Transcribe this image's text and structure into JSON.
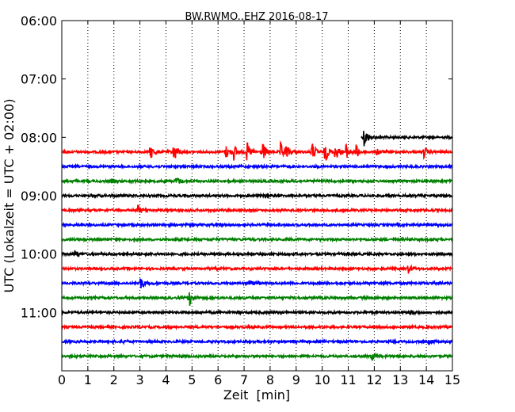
{
  "chart_data": {
    "type": "line",
    "title": "BW.RWMO..EHZ 2016-08-17",
    "xlabel": "Zeit  [min]",
    "ylabel": "UTC (Lokalzeit = UTC + 02:00)",
    "xlim": [
      0,
      15
    ],
    "ylim_minutes": [
      360,
      720
    ],
    "x_ticks": [
      "0",
      "1",
      "2",
      "3",
      "4",
      "5",
      "6",
      "7",
      "8",
      "9",
      "10",
      "11",
      "12",
      "13",
      "14",
      "15"
    ],
    "y_ticks": [
      {
        "label": "06:00",
        "minutes": 360
      },
      {
        "label": "07:00",
        "minutes": 420
      },
      {
        "label": "08:00",
        "minutes": 480
      },
      {
        "label": "09:00",
        "minutes": 540
      },
      {
        "label": "10:00",
        "minutes": 600
      },
      {
        "label": "11:00",
        "minutes": 660
      }
    ],
    "grid": "vertical dotted",
    "colors": {
      "red": "#ff0000",
      "blue": "#0000ff",
      "green": "#008000",
      "black": "#000000"
    },
    "traces": [
      {
        "start": "08:00",
        "color": "black",
        "x_start": 11.5,
        "events": [
          {
            "x": 11.6,
            "amp": 1.0
          }
        ]
      },
      {
        "start": "08:15",
        "color": "red",
        "x_start": 0,
        "events": [
          {
            "x": 3.4,
            "amp": 0.7
          },
          {
            "x": 4.3,
            "amp": 1.0
          },
          {
            "x": 6.3,
            "amp": 0.6
          },
          {
            "x": 6.6,
            "amp": 0.7
          },
          {
            "x": 7.1,
            "amp": 0.9
          },
          {
            "x": 7.7,
            "amp": 0.9
          },
          {
            "x": 8.4,
            "amp": 0.8
          },
          {
            "x": 8.6,
            "amp": 0.5
          },
          {
            "x": 9.6,
            "amp": 0.9
          },
          {
            "x": 10.1,
            "amp": 1.0
          },
          {
            "x": 10.5,
            "amp": 0.8
          },
          {
            "x": 10.9,
            "amp": 0.7
          },
          {
            "x": 11.3,
            "amp": 0.6
          },
          {
            "x": 12.1,
            "amp": 0.3
          },
          {
            "x": 13.9,
            "amp": 0.5
          }
        ]
      },
      {
        "start": "08:30",
        "color": "blue",
        "x_start": 0,
        "events": []
      },
      {
        "start": "08:45",
        "color": "green",
        "x_start": 0,
        "events": [
          {
            "x": 4.4,
            "amp": 0.4
          },
          {
            "x": 1.9,
            "amp": 0.15
          }
        ]
      },
      {
        "start": "09:00",
        "color": "black",
        "x_start": 0,
        "events": [
          {
            "x": 7.9,
            "amp": 0.2
          }
        ]
      },
      {
        "start": "09:15",
        "color": "red",
        "x_start": 0,
        "events": [
          {
            "x": 2.9,
            "amp": 0.5
          }
        ]
      },
      {
        "start": "09:30",
        "color": "blue",
        "x_start": 0,
        "events": []
      },
      {
        "start": "09:45",
        "color": "green",
        "x_start": 0,
        "events": []
      },
      {
        "start": "10:00",
        "color": "black",
        "x_start": 0,
        "events": [
          {
            "x": 0.5,
            "amp": 0.3
          }
        ]
      },
      {
        "start": "10:15",
        "color": "red",
        "x_start": 0,
        "events": [
          {
            "x": 13.3,
            "amp": 0.4
          }
        ]
      },
      {
        "start": "10:30",
        "color": "blue",
        "x_start": 0,
        "events": [
          {
            "x": 3.0,
            "amp": 0.6
          },
          {
            "x": 7.2,
            "amp": 0.3
          }
        ]
      },
      {
        "start": "10:45",
        "color": "green",
        "x_start": 0,
        "events": [
          {
            "x": 4.9,
            "amp": 0.7
          }
        ]
      },
      {
        "start": "11:00",
        "color": "black",
        "x_start": 0,
        "events": [
          {
            "x": 13.4,
            "amp": 0.2
          }
        ]
      },
      {
        "start": "11:15",
        "color": "red",
        "x_start": 0,
        "events": []
      },
      {
        "start": "11:30",
        "color": "blue",
        "x_start": 0,
        "events": [
          {
            "x": 2.4,
            "amp": 0.15
          },
          {
            "x": 14.1,
            "amp": 0.2
          }
        ]
      },
      {
        "start": "11:45",
        "color": "green",
        "x_start": 0,
        "events": [
          {
            "x": 11.9,
            "amp": 0.3
          }
        ]
      }
    ]
  }
}
